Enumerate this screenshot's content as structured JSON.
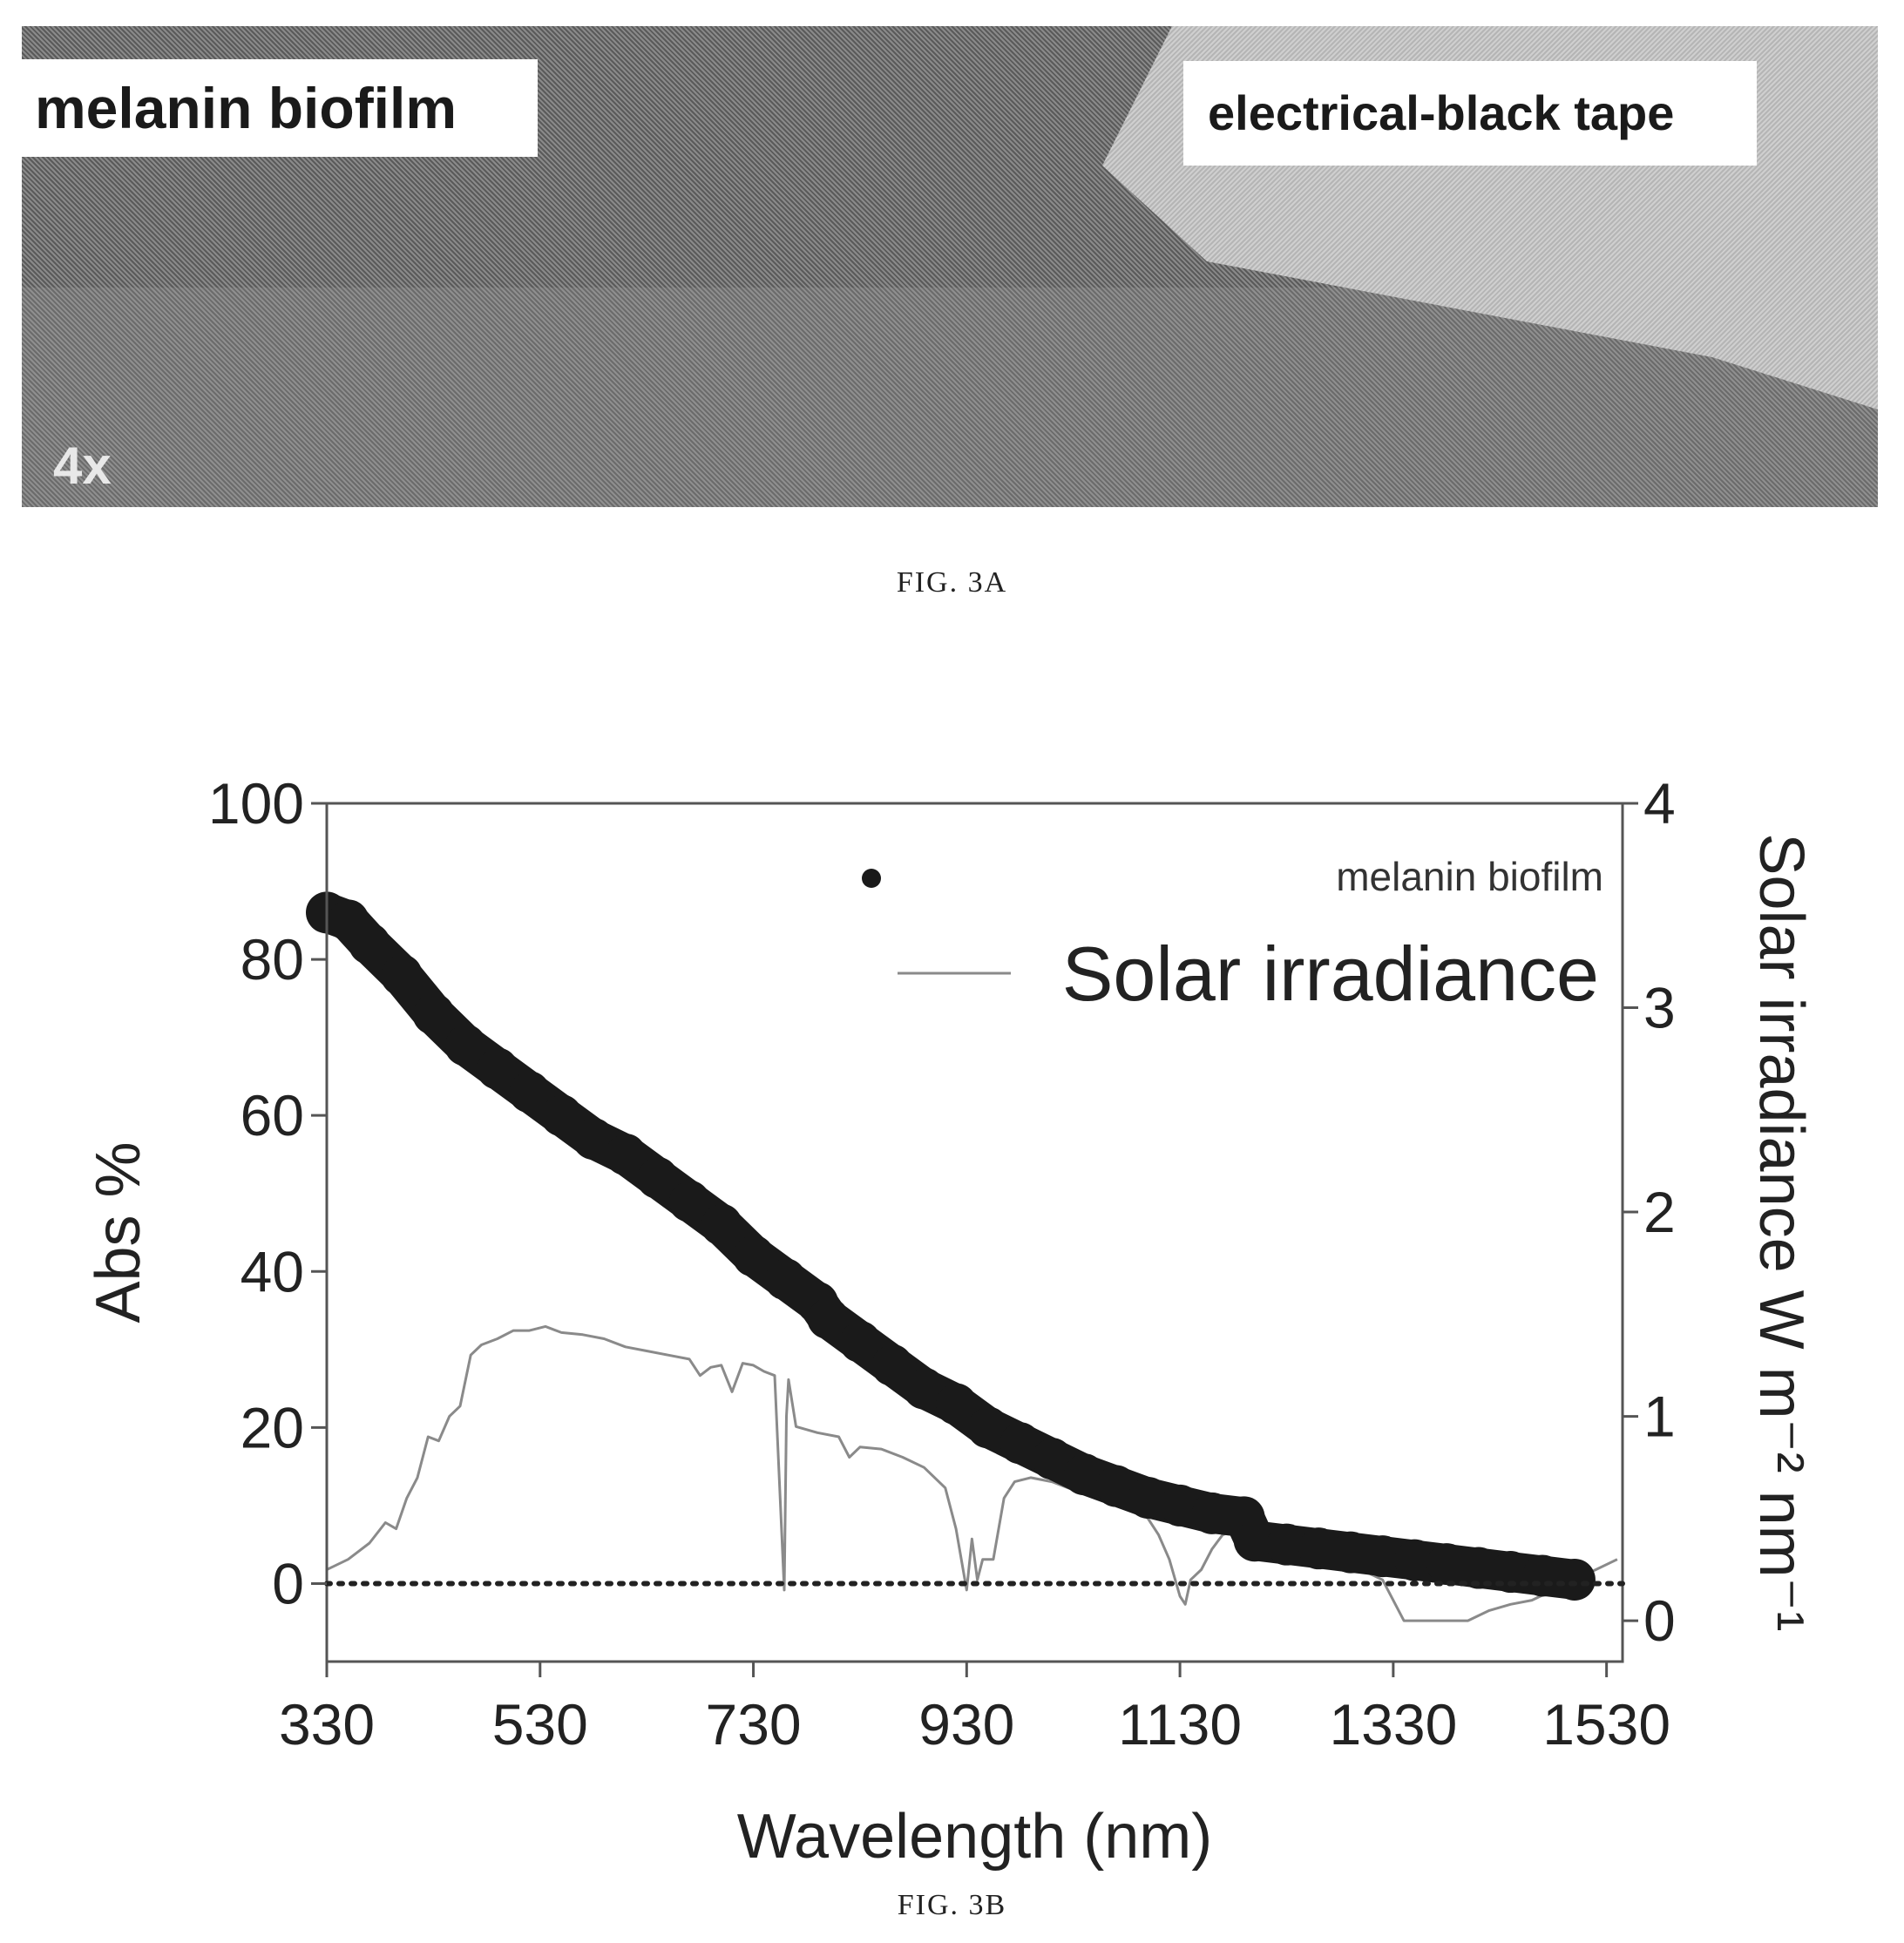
{
  "figure_a": {
    "label_left": "melanin biofilm",
    "label_right": "electrical-black tape",
    "magnification": "4x",
    "caption": "FIG. 3A"
  },
  "figure_b": {
    "caption": "FIG. 3B"
  },
  "chart_data": {
    "type": "scatter",
    "xlabel": "Wavelength (nm)",
    "ylabel": "Abs %",
    "y2label": "Solar irradiance W m⁻² nm⁻¹",
    "xlim": [
      330,
      1545
    ],
    "ylim": [
      -10,
      100
    ],
    "y2lim": [
      -0.2,
      4
    ],
    "xticks": [
      330,
      530,
      730,
      930,
      1130,
      1330,
      1530
    ],
    "yticks": [
      0,
      20,
      40,
      60,
      80,
      100
    ],
    "y2ticks": [
      0,
      1,
      2,
      3,
      4
    ],
    "grid": false,
    "legend_position": "top-right",
    "reference_line_y": 0,
    "series": [
      {
        "name": "melanin biofilm",
        "style": "markers",
        "axis": "left",
        "color": "#1a1a1a",
        "x": [
          330,
          350,
          370,
          400,
          430,
          460,
          490,
          520,
          550,
          580,
          610,
          640,
          670,
          700,
          730,
          760,
          790,
          800,
          830,
          860,
          890,
          920,
          950,
          980,
          1010,
          1040,
          1070,
          1100,
          1130,
          1160,
          1190,
          1200,
          1230,
          1260,
          1290,
          1320,
          1350,
          1380,
          1410,
          1440,
          1470,
          1500
        ],
        "values": [
          86,
          85,
          82,
          78,
          73,
          69,
          66,
          63,
          60,
          57,
          55,
          52,
          49,
          46,
          42,
          39,
          36,
          34,
          31,
          28,
          25,
          23,
          20,
          18,
          16,
          14,
          12.5,
          11,
          10,
          9,
          8.5,
          5.5,
          5,
          4.5,
          4,
          3.5,
          3,
          2.5,
          2,
          1.5,
          1,
          0.5
        ]
      },
      {
        "name": "Solar irradiance",
        "style": "line",
        "axis": "right",
        "color": "#8a8a8a",
        "x": [
          330,
          350,
          370,
          385,
          395,
          405,
          415,
          425,
          435,
          445,
          455,
          465,
          475,
          490,
          505,
          520,
          535,
          550,
          570,
          590,
          610,
          630,
          650,
          670,
          680,
          690,
          700,
          710,
          720,
          730,
          740,
          750,
          759,
          761,
          763,
          770,
          790,
          810,
          820,
          830,
          850,
          870,
          890,
          910,
          920,
          930,
          935,
          940,
          945,
          955,
          965,
          975,
          990,
          1010,
          1030,
          1060,
          1080,
          1100,
          1110,
          1120,
          1130,
          1135,
          1140,
          1150,
          1160,
          1170,
          1180,
          1200,
          1220,
          1250,
          1280,
          1300,
          1320,
          1340,
          1350,
          1360,
          1380,
          1400,
          1420,
          1440,
          1460,
          1480,
          1500,
          1520,
          1540
        ],
        "values": [
          0.25,
          0.3,
          0.38,
          0.48,
          0.45,
          0.6,
          0.7,
          0.9,
          0.88,
          1.0,
          1.05,
          1.3,
          1.35,
          1.38,
          1.42,
          1.42,
          1.44,
          1.41,
          1.4,
          1.38,
          1.34,
          1.32,
          1.3,
          1.28,
          1.2,
          1.24,
          1.25,
          1.12,
          1.26,
          1.25,
          1.22,
          1.2,
          0.15,
          1.0,
          1.18,
          0.95,
          0.92,
          0.9,
          0.8,
          0.85,
          0.84,
          0.8,
          0.75,
          0.65,
          0.45,
          0.15,
          0.4,
          0.2,
          0.3,
          0.3,
          0.6,
          0.68,
          0.7,
          0.68,
          0.64,
          0.62,
          0.58,
          0.5,
          0.42,
          0.3,
          0.12,
          0.08,
          0.2,
          0.25,
          0.35,
          0.42,
          0.44,
          0.43,
          0.42,
          0.35,
          0.32,
          0.25,
          0.2,
          0.0,
          0.0,
          0.0,
          0.0,
          0.0,
          0.05,
          0.08,
          0.1,
          0.15,
          0.2,
          0.25,
          0.3
        ]
      }
    ]
  }
}
